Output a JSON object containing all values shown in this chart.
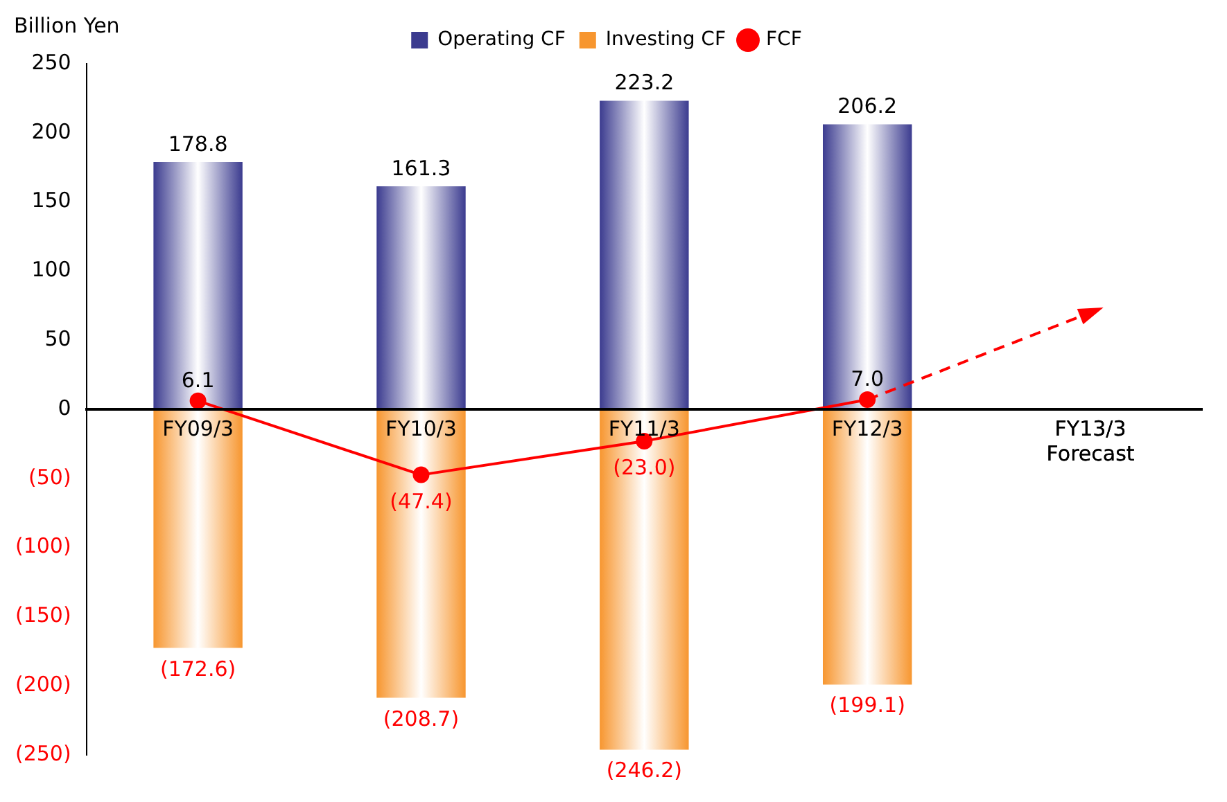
{
  "chart_data": {
    "type": "bar",
    "ylabel": "Billion Yen",
    "categories": [
      "FY09/3",
      "FY10/3",
      "FY11/3",
      "FY12/3",
      "FY13/3 Forecast"
    ],
    "series": [
      {
        "name": "Operating CF",
        "color": "#3b3b8f",
        "values": [
          178.8,
          161.3,
          223.2,
          206.2,
          null
        ],
        "value_labels": [
          "178.8",
          "161.3",
          "223.2",
          "206.2",
          null
        ]
      },
      {
        "name": "Investing CF",
        "color": "#f7962f",
        "values": [
          -172.6,
          -208.7,
          -246.2,
          -199.1,
          null
        ],
        "value_labels": [
          "(172.6)",
          "(208.7)",
          "(246.2)",
          "(199.1)",
          null
        ]
      },
      {
        "name": "FCF",
        "type": "line",
        "color": "#ff0000",
        "marker": "circle",
        "line_style": "solid",
        "values": [
          6.1,
          -47.4,
          -23.0,
          7.0,
          null
        ],
        "value_labels": [
          "6.1",
          "(47.4)",
          "(23.0)",
          "7.0",
          null
        ]
      },
      {
        "type": "line",
        "color": "#ff0000",
        "line_style": "dashed",
        "values": [
          null,
          null,
          null,
          7.0,
          70
        ]
      }
    ],
    "stacked": true,
    "ylim": [
      -250,
      250
    ],
    "yticks": [
      {
        "value": -250,
        "label": "(250)"
      },
      {
        "value": -200,
        "label": "(200)"
      },
      {
        "value": -150,
        "label": "(150)"
      },
      {
        "value": -100,
        "label": "(100)"
      },
      {
        "value": -50,
        "label": "(50)"
      },
      0,
      50,
      100,
      150,
      200,
      250
    ],
    "grid": false,
    "legend": "top"
  }
}
